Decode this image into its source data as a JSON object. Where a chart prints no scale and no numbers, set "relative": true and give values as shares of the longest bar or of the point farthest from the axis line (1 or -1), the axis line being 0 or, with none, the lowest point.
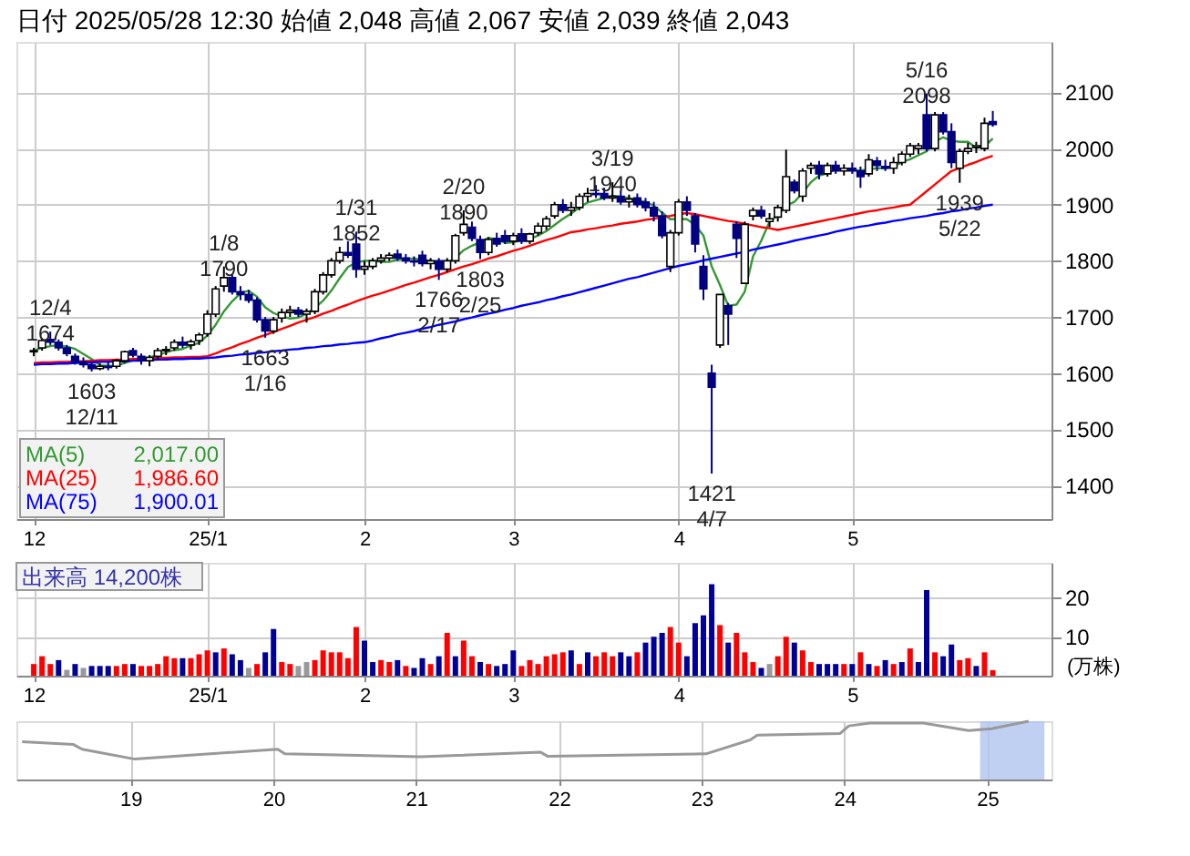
{
  "chart_data": [
    {
      "type": "candlestick",
      "title": "日付 2025/05/28 12:30 始値 2,048 高値 2,067 安値 2,039 終値 2,043",
      "categories": [
        "12",
        null,
        null,
        null,
        null,
        null,
        null,
        null,
        null,
        null,
        null,
        null,
        null,
        null,
        null,
        null,
        null,
        null,
        null,
        null,
        null,
        "25/1",
        null,
        null,
        null,
        null,
        null,
        null,
        null,
        null,
        null,
        null,
        null,
        null,
        null,
        null,
        null,
        null,
        null,
        null,
        "2",
        null,
        null,
        null,
        null,
        null,
        null,
        null,
        null,
        null,
        null,
        null,
        null,
        null,
        null,
        null,
        null,
        null,
        "3",
        null,
        null,
        null,
        null,
        null,
        null,
        null,
        null,
        null,
        null,
        null,
        null,
        null,
        null,
        null,
        null,
        null,
        null,
        null,
        "4",
        null,
        null,
        null,
        null,
        null,
        null,
        null,
        null,
        null,
        null,
        null,
        null,
        null,
        null,
        null,
        null,
        null,
        null,
        null,
        null,
        "5",
        null,
        null,
        null,
        null,
        null,
        null,
        null,
        null,
        null,
        null,
        null,
        null,
        null,
        null,
        null,
        null,
        null
      ],
      "ohlc": [
        [
          1638,
          1645,
          1630,
          1640
        ],
        [
          1645,
          1662,
          1640,
          1658
        ],
        [
          1660,
          1674,
          1650,
          1655
        ],
        [
          1655,
          1660,
          1640,
          1645
        ],
        [
          1645,
          1650,
          1630,
          1635
        ],
        [
          1630,
          1635,
          1615,
          1620
        ],
        [
          1620,
          1628,
          1610,
          1615
        ],
        [
          1615,
          1620,
          1603,
          1608
        ],
        [
          1608,
          1618,
          1605,
          1612
        ],
        [
          1612,
          1620,
          1605,
          1610
        ],
        [
          1612,
          1625,
          1608,
          1622
        ],
        [
          1622,
          1640,
          1618,
          1638
        ],
        [
          1640,
          1645,
          1628,
          1632
        ],
        [
          1630,
          1635,
          1615,
          1622
        ],
        [
          1622,
          1632,
          1612,
          1628
        ],
        [
          1630,
          1645,
          1625,
          1640
        ],
        [
          1640,
          1648,
          1632,
          1642
        ],
        [
          1645,
          1660,
          1640,
          1655
        ],
        [
          1655,
          1665,
          1645,
          1650
        ],
        [
          1650,
          1660,
          1642,
          1656
        ],
        [
          1658,
          1672,
          1650,
          1668
        ],
        [
          1670,
          1712,
          1665,
          1705
        ],
        [
          1705,
          1755,
          1700,
          1750
        ],
        [
          1755,
          1790,
          1745,
          1770
        ],
        [
          1770,
          1775,
          1740,
          1745
        ],
        [
          1745,
          1755,
          1730,
          1740
        ],
        [
          1740,
          1748,
          1725,
          1730
        ],
        [
          1730,
          1735,
          1690,
          1695
        ],
        [
          1695,
          1700,
          1663,
          1675
        ],
        [
          1675,
          1700,
          1670,
          1695
        ],
        [
          1698,
          1715,
          1690,
          1708
        ],
        [
          1708,
          1720,
          1700,
          1712
        ],
        [
          1712,
          1718,
          1700,
          1705
        ],
        [
          1705,
          1715,
          1690,
          1710
        ],
        [
          1710,
          1750,
          1705,
          1745
        ],
        [
          1745,
          1780,
          1740,
          1775
        ],
        [
          1775,
          1805,
          1770,
          1800
        ],
        [
          1800,
          1825,
          1795,
          1815
        ],
        [
          1815,
          1835,
          1805,
          1810
        ],
        [
          1830,
          1852,
          1770,
          1785
        ],
        [
          1785,
          1800,
          1775,
          1790
        ],
        [
          1790,
          1805,
          1785,
          1800
        ],
        [
          1800,
          1812,
          1795,
          1805
        ],
        [
          1805,
          1815,
          1800,
          1810
        ],
        [
          1812,
          1820,
          1800,
          1805
        ],
        [
          1805,
          1812,
          1795,
          1800
        ],
        [
          1800,
          1808,
          1790,
          1798
        ],
        [
          1810,
          1818,
          1790,
          1795
        ],
        [
          1795,
          1805,
          1785,
          1800
        ],
        [
          1800,
          1805,
          1766,
          1785
        ],
        [
          1785,
          1805,
          1780,
          1800
        ],
        [
          1800,
          1848,
          1795,
          1845
        ],
        [
          1850,
          1890,
          1845,
          1865
        ],
        [
          1860,
          1870,
          1835,
          1840
        ],
        [
          1838,
          1845,
          1803,
          1815
        ],
        [
          1815,
          1842,
          1810,
          1838
        ],
        [
          1840,
          1850,
          1825,
          1830
        ],
        [
          1845,
          1855,
          1830,
          1835
        ],
        [
          1835,
          1850,
          1828,
          1845
        ],
        [
          1848,
          1858,
          1830,
          1835
        ],
        [
          1835,
          1850,
          1830,
          1848
        ],
        [
          1850,
          1868,
          1845,
          1862
        ],
        [
          1862,
          1880,
          1855,
          1875
        ],
        [
          1880,
          1905,
          1875,
          1900
        ],
        [
          1900,
          1910,
          1885,
          1890
        ],
        [
          1890,
          1905,
          1880,
          1895
        ],
        [
          1895,
          1920,
          1890,
          1915
        ],
        [
          1915,
          1930,
          1905,
          1920
        ],
        [
          1920,
          1935,
          1912,
          1918
        ],
        [
          1920,
          1930,
          1908,
          1912
        ],
        [
          1912,
          1940,
          1905,
          1915
        ],
        [
          1915,
          1925,
          1900,
          1905
        ],
        [
          1905,
          1918,
          1895,
          1910
        ],
        [
          1912,
          1920,
          1895,
          1900
        ],
        [
          1905,
          1912,
          1888,
          1895
        ],
        [
          1895,
          1905,
          1870,
          1880
        ],
        [
          1880,
          1888,
          1840,
          1845
        ],
        [
          1790,
          1855,
          1780,
          1850
        ],
        [
          1850,
          1910,
          1845,
          1905
        ],
        [
          1905,
          1915,
          1880,
          1890
        ],
        [
          1880,
          1885,
          1815,
          1830
        ],
        [
          1790,
          1810,
          1730,
          1750
        ],
        [
          1600,
          1615,
          1421,
          1575
        ],
        [
          1650,
          1740,
          1645,
          1740
        ],
        [
          1720,
          1725,
          1650,
          1705
        ],
        [
          1865,
          1870,
          1805,
          1840
        ],
        [
          1760,
          1870,
          1760,
          1865
        ],
        [
          1880,
          1895,
          1872,
          1890
        ],
        [
          1890,
          1898,
          1875,
          1880
        ],
        [
          1870,
          1885,
          1860,
          1875
        ],
        [
          1878,
          1900,
          1870,
          1895
        ],
        [
          1890,
          1998,
          1885,
          1950
        ],
        [
          1940,
          1945,
          1920,
          1925
        ],
        [
          1915,
          1965,
          1905,
          1960
        ],
        [
          1965,
          1975,
          1955,
          1970
        ],
        [
          1970,
          1978,
          1945,
          1955
        ],
        [
          1955,
          1975,
          1950,
          1970
        ],
        [
          1970,
          1978,
          1955,
          1960
        ],
        [
          1960,
          1972,
          1952,
          1965
        ],
        [
          1965,
          1975,
          1955,
          1960
        ],
        [
          1960,
          1968,
          1930,
          1950
        ],
        [
          1955,
          1990,
          1950,
          1980
        ],
        [
          1978,
          1985,
          1960,
          1970
        ],
        [
          1968,
          1980,
          1960,
          1965
        ],
        [
          1965,
          1985,
          1955,
          1975
        ],
        [
          1975,
          1995,
          1970,
          1990
        ],
        [
          1990,
          2010,
          1985,
          2005
        ],
        [
          2000,
          2010,
          1990,
          2005
        ],
        [
          2060,
          2098,
          1995,
          2000
        ],
        [
          2000,
          2065,
          1995,
          2060
        ],
        [
          2060,
          2065,
          2025,
          2030
        ],
        [
          2030,
          2045,
          1965,
          1975
        ],
        [
          1965,
          2000,
          1939,
          1995
        ],
        [
          1995,
          2010,
          1990,
          2000
        ],
        [
          2002,
          2012,
          1992,
          2005
        ],
        [
          2000,
          2055,
          1995,
          2045
        ],
        [
          2048,
          2067,
          2039,
          2043
        ]
      ],
      "series": [
        {
          "name": "MA(5) 2,017.00",
          "type": "line",
          "color": "#339933",
          "values": [
            1640,
            1645,
            1648,
            1650,
            1647,
            1643,
            1634,
            1625,
            1614,
            1613,
            1613,
            1618,
            1623,
            1627,
            1628,
            1632,
            1637,
            1641,
            1643,
            1649,
            1654,
            1667,
            1686,
            1710,
            1728,
            1742,
            1747,
            1736,
            1717,
            1707,
            1701,
            1697,
            1699,
            1706,
            1716,
            1729,
            1747,
            1769,
            1789,
            1797,
            1800,
            1800,
            1798,
            1798,
            1802,
            1804,
            1804,
            1802,
            1800,
            1796,
            1796,
            1805,
            1819,
            1827,
            1833,
            1841,
            1838,
            1832,
            1833,
            1837,
            1839,
            1845,
            1853,
            1864,
            1875,
            1884,
            1895,
            1904,
            1908,
            1912,
            1916,
            1914,
            1912,
            1908,
            1905,
            1898,
            1886,
            1874,
            1875,
            1874,
            1864,
            1845,
            1790,
            1757,
            1720,
            1722,
            1745,
            1808,
            1836,
            1870,
            1881,
            1898,
            1905,
            1921,
            1940,
            1952,
            1956,
            1963,
            1964,
            1962,
            1961,
            1963,
            1965,
            1965,
            1968,
            1976,
            1981,
            1988,
            1995,
            2012,
            2020,
            2014,
            2012,
            2012,
            2001,
            2004,
            2018
          ]
        },
        {
          "name": "MA(25) 1,986.60",
          "type": "line",
          "color": "#ff0000",
          "values": [
            1618,
            1619,
            1619,
            1620,
            1620,
            1621,
            1621,
            1622,
            1623,
            1623,
            1624,
            1624,
            1625,
            1625,
            1626,
            1627,
            1627,
            1628,
            1628,
            1629,
            1629,
            1630,
            1635,
            1641,
            1646,
            1652,
            1657,
            1663,
            1668,
            1673,
            1679,
            1684,
            1690,
            1695,
            1700,
            1706,
            1711,
            1717,
            1722,
            1728,
            1733,
            1738,
            1742,
            1747,
            1752,
            1757,
            1761,
            1766,
            1771,
            1775,
            1780,
            1785,
            1790,
            1794,
            1799,
            1804,
            1808,
            1813,
            1818,
            1822,
            1827,
            1832,
            1837,
            1841,
            1846,
            1851,
            1853,
            1856,
            1858,
            1861,
            1863,
            1866,
            1868,
            1870,
            1873,
            1875,
            1878,
            1880,
            1883,
            1885,
            1883,
            1880,
            1877,
            1874,
            1871,
            1869,
            1866,
            1863,
            1860,
            1858,
            1855,
            1858,
            1861,
            1864,
            1867,
            1870,
            1873,
            1876,
            1879,
            1882,
            1885,
            1888,
            1890,
            1893,
            1895,
            1898,
            1900,
            1912,
            1924,
            1936,
            1948,
            1960,
            1965,
            1971,
            1976,
            1982,
            1987
          ]
        },
        {
          "name": "MA(75) 1,900.01",
          "type": "line",
          "color": "#0000ff",
          "values": [
            1615,
            1616,
            1616,
            1617,
            1617,
            1618,
            1618,
            1619,
            1620,
            1620,
            1621,
            1621,
            1622,
            1622,
            1623,
            1624,
            1624,
            1625,
            1625,
            1626,
            1626,
            1627,
            1628,
            1630,
            1631,
            1633,
            1634,
            1636,
            1637,
            1639,
            1640,
            1642,
            1643,
            1645,
            1646,
            1648,
            1649,
            1651,
            1652,
            1654,
            1655,
            1658,
            1662,
            1665,
            1669,
            1672,
            1675,
            1679,
            1682,
            1686,
            1689,
            1692,
            1696,
            1699,
            1703,
            1706,
            1709,
            1713,
            1716,
            1720,
            1723,
            1726,
            1730,
            1733,
            1737,
            1740,
            1744,
            1748,
            1752,
            1756,
            1760,
            1764,
            1768,
            1771,
            1775,
            1779,
            1783,
            1787,
            1791,
            1794,
            1797,
            1801,
            1804,
            1807,
            1810,
            1813,
            1816,
            1820,
            1823,
            1826,
            1829,
            1832,
            1836,
            1839,
            1842,
            1845,
            1848,
            1852,
            1855,
            1858,
            1861,
            1863,
            1866,
            1868,
            1871,
            1873,
            1876,
            1878,
            1880,
            1883,
            1885,
            1888,
            1890,
            1893,
            1895,
            1898,
            1900
          ]
        }
      ],
      "annotations": [
        {
          "text": "12/4 1674",
          "y": 1674
        },
        {
          "text": "1603 12/11",
          "y": 1603
        },
        {
          "text": "1/8 1790",
          "y": 1790
        },
        {
          "text": "1663 1/16",
          "y": 1663
        },
        {
          "text": "1/31 1852",
          "y": 1852
        },
        {
          "text": "2/20 1890",
          "y": 1890
        },
        {
          "text": "1766 2/17",
          "y": 1766
        },
        {
          "text": "1803 2/25",
          "y": 1803
        },
        {
          "text": "3/19 1940",
          "y": 1940
        },
        {
          "text": "1421 4/7",
          "y": 1421
        },
        {
          "text": "5/16 2098",
          "y": 2098
        },
        {
          "text": "1939 5/22",
          "y": 1939
        }
      ],
      "ylim": [
        1340,
        2190
      ],
      "yticks": [
        1400,
        1500,
        1600,
        1700,
        1800,
        1900,
        2000,
        2100
      ],
      "grid": true
    },
    {
      "type": "bar",
      "title": "出来高 14,200株",
      "ylabel": "(万株)",
      "categories": [
        "12",
        null,
        null,
        null,
        null,
        null,
        null,
        null,
        null,
        null,
        null,
        null,
        null,
        null,
        null,
        null,
        null,
        null,
        null,
        null,
        null,
        "25/1",
        null,
        null,
        null,
        null,
        null,
        null,
        null,
        null,
        null,
        null,
        null,
        null,
        null,
        null,
        null,
        null,
        null,
        null,
        "2",
        null,
        null,
        null,
        null,
        null,
        null,
        null,
        null,
        null,
        null,
        null,
        null,
        null,
        null,
        null,
        null,
        null,
        "3",
        null,
        null,
        null,
        null,
        null,
        null,
        null,
        null,
        null,
        null,
        null,
        null,
        null,
        null,
        null,
        null,
        null,
        null,
        null,
        "4",
        null,
        null,
        null,
        null,
        null,
        null,
        null,
        null,
        null,
        null,
        null,
        null,
        null,
        null,
        null,
        null,
        null,
        null,
        null,
        null,
        "5",
        null,
        null,
        null,
        null,
        null,
        null,
        null,
        null,
        null,
        null,
        null,
        null,
        null,
        null,
        null,
        null,
        null
      ],
      "values": [
        3,
        5,
        3,
        4,
        1.5,
        3,
        2,
        2.5,
        2.5,
        2.5,
        2.5,
        3,
        3,
        2.5,
        2.5,
        3,
        5,
        4.5,
        4.5,
        4.5,
        5.5,
        6.5,
        6,
        7,
        5.5,
        4,
        2,
        3,
        6,
        12,
        3.5,
        3,
        2.5,
        3.5,
        4,
        6.5,
        6,
        6,
        4.5,
        12.5,
        9,
        3.5,
        4,
        3.5,
        4,
        2.5,
        2,
        4.5,
        3,
        5,
        11,
        5,
        9,
        5,
        3.5,
        3,
        2.5,
        3,
        6.5,
        2.5,
        4,
        3,
        5,
        5.5,
        6,
        6.5,
        3,
        6,
        5,
        6,
        5,
        6,
        5,
        6,
        8.5,
        10,
        11,
        12.5,
        8.5,
        5,
        13.5,
        15.5,
        23.5,
        13,
        8.5,
        11,
        6,
        3.5,
        2,
        3,
        5,
        10,
        8.5,
        6.5,
        3.5,
        3,
        3,
        3,
        3,
        3,
        6,
        3,
        2.5,
        4,
        3,
        3.5,
        7,
        3.5,
        22,
        6,
        5,
        8,
        4,
        4.5,
        2.5,
        6,
        1.42
      ],
      "colors": [
        "#ff0000",
        "#ff0000",
        "#ff0000",
        "#000099",
        "#999999",
        "#000099",
        "#999999",
        "#000099",
        "#000099",
        "#000099",
        "#ff0000",
        "#ff0000",
        "#000099",
        "#ff0000",
        "#ff0000",
        "#ff0000",
        "#ff0000",
        "#ff0000",
        "#000099",
        "#ff0000",
        "#ff0000",
        "#ff0000",
        "#000099",
        "#ff0000",
        "#000099",
        "#000099",
        "#999999",
        "#ff0000",
        "#000099",
        "#000099",
        "#ff0000",
        "#ff0000",
        "#999999",
        "#999999",
        "#ff0000",
        "#ff0000",
        "#ff0000",
        "#ff0000",
        "#ff0000",
        "#ff0000",
        "#000099",
        "#000099",
        "#ff0000",
        "#ff0000",
        "#000099",
        "#ff0000",
        "#000099",
        "#000099",
        "#ff0000",
        "#000099",
        "#ff0000",
        "#000099",
        "#ff0000",
        "#ff0000",
        "#000099",
        "#ff0000",
        "#000099",
        "#000099",
        "#000099",
        "#ff0000",
        "#ff0000",
        "#ff0000",
        "#ff0000",
        "#ff0000",
        "#ff0000",
        "#000099",
        "#ff0000",
        "#000099",
        "#ff0000",
        "#ff0000",
        "#ff0000",
        "#000099",
        "#000099",
        "#ff0000",
        "#000099",
        "#000099",
        "#000099",
        "#ff0000",
        "#ff0000",
        "#000099",
        "#000099",
        "#000099",
        "#000099",
        "#ff0000",
        "#000099",
        "#ff0000",
        "#ff0000",
        "#ff0000",
        "#000099",
        "#999999",
        "#ff0000",
        "#ff0000",
        "#000099",
        "#ff0000",
        "#ff0000",
        "#000099",
        "#000099",
        "#000099",
        "#ff0000",
        "#000099",
        "#ff0000",
        "#000099",
        "#ff0000",
        "#000099",
        "#ff0000",
        "#000099",
        "#ff0000",
        "#000099",
        "#000099",
        "#ff0000",
        "#000099",
        "#000099",
        "#ff0000",
        "#ff0000",
        "#000099",
        "#ff0000",
        "#ff0000"
      ],
      "ylim": [
        0,
        29
      ],
      "yticks": [
        10,
        20
      ],
      "grid": true
    },
    {
      "type": "line",
      "relative": true,
      "series": [
        {
          "color": "#999999",
          "x": [
            2018.24,
            2018.6,
            2018.66,
            2019.03,
            2020.03,
            2020.08,
            2021.03,
            2021.87,
            2021.92,
            2023.03,
            2023.34,
            2023.39,
            2023.97,
            2024.03,
            2024.18,
            2024.55,
            2024.87,
            2025.03,
            2025.29
          ],
          "values": [
            0.65,
            0.6,
            0.52,
            0.35,
            0.52,
            0.44,
            0.39,
            0.47,
            0.4,
            0.44,
            0.68,
            0.76,
            0.79,
            0.92,
            0.97,
            0.97,
            0.84,
            0.87,
            1
          ]
        }
      ],
      "bands": [
        {
          "axis": "x",
          "from": 2024.95,
          "to": 2025.4,
          "color": "#b0c4f0"
        }
      ],
      "xlim": [
        2018.2,
        2025.45
      ],
      "xticks": [
        {
          "value": 2019,
          "label": "19"
        },
        {
          "value": 2020,
          "label": "20"
        },
        {
          "value": 2021,
          "label": "21"
        },
        {
          "value": 2022,
          "label": "22"
        },
        {
          "value": 2023,
          "label": "23"
        },
        {
          "value": 2024,
          "label": "24"
        },
        {
          "value": 2025,
          "label": "25"
        }
      ],
      "grid": "x"
    }
  ]
}
